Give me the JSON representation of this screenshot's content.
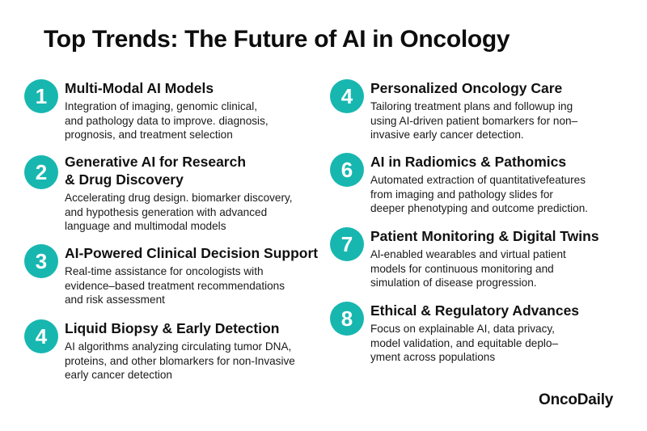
{
  "title": "Top Trends: The Future of AI in Oncology",
  "accent_color": "#17b7b0",
  "brand": "OncoDaily",
  "items": [
    {
      "number": "1",
      "title_lines": [
        "Multi-Modal AI Models"
      ],
      "desc_lines": [
        "Integration of imaging, genomic clinical,",
        "and pathology data to improve.  diagnosis,",
        "prognosis, and treatment selection"
      ]
    },
    {
      "number": "2",
      "title_lines": [
        "Generative AI for Research",
        "& Drug Discovery"
      ],
      "desc_lines": [
        "Accelerating drug design. biomarker discovery,",
        "and hypothesis generation with advanced",
        "language and multimodal models"
      ]
    },
    {
      "number": "3",
      "title_lines": [
        "AI-Powered Clinical Decision Support"
      ],
      "desc_lines": [
        "Real-time assistance for oncologists with",
        "evidence–based treatment recommendations",
        "and risk assessment"
      ]
    },
    {
      "number": "4",
      "title_lines": [
        "Liquid Biopsy & Early Detection"
      ],
      "desc_lines": [
        "AI algorithms analyzing circulating tumor DNA,",
        "proteins, and other blomarkers for non-Invasive",
        "early cancer detection"
      ]
    },
    {
      "number": "4",
      "title_lines": [
        "Personalized Oncology Care"
      ],
      "desc_lines": [
        "Tailoring treatment plans and followup    ing",
        "using AI-driven patient bomarkers for non–",
        "invasive early cancer detection."
      ]
    },
    {
      "number": "6",
      "title_lines": [
        "AI in Radiomics & Pathomics"
      ],
      "desc_lines": [
        "Automated extraction of quantitativefeatures",
        "from imaging and pathology  slides for",
        "deeper phenotyping and outcome prediction."
      ]
    },
    {
      "number": "7",
      "title_lines": [
        "Patient Monitoring & Digital Twins"
      ],
      "desc_lines": [
        "Al-enabled wearables and virtual patient",
        "models for continuous monitoring and",
        "simulation of disease progression."
      ]
    },
    {
      "number": "8",
      "title_lines": [
        "Ethical & Regulatory Advances"
      ],
      "desc_lines": [
        "Focus on explainable AI, data privacy,",
        "model validation, and equitable deplo–",
        "yment across populations"
      ]
    }
  ]
}
